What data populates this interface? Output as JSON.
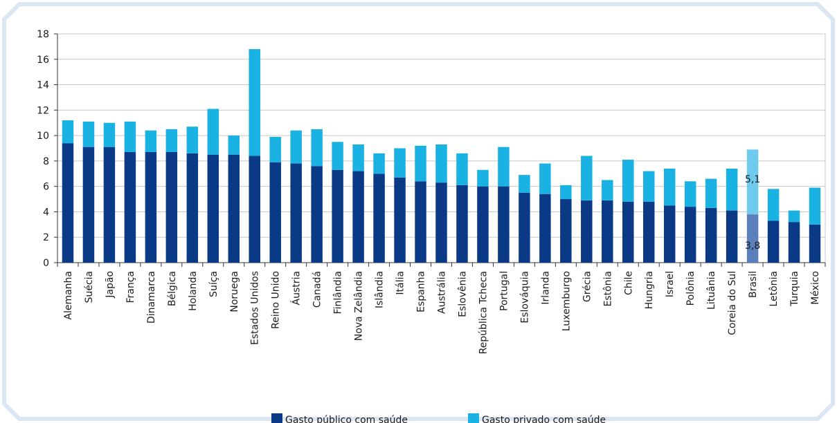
{
  "chart_data": {
    "type": "bar",
    "stacked": true,
    "title": "",
    "xlabel": "",
    "ylabel": "",
    "ylim": [
      0,
      18
    ],
    "yticks": [
      0,
      2,
      4,
      6,
      8,
      10,
      12,
      14,
      16,
      18
    ],
    "grid": true,
    "legend_position": "bottom",
    "categories": [
      "Alemanha",
      "Suécia",
      "Japão",
      "França",
      "Dinamarca",
      "Bélgica",
      "Holanda",
      "Suíça",
      "Noruega",
      "Estados Unidos",
      "Reino Unido",
      "Áustria",
      "Canadá",
      "Finlândia",
      "Nova Zelândia",
      "Islândia",
      "Itália",
      "Espanha",
      "Austrália",
      "Eslovênia",
      "República Tcheca",
      "Portugal",
      "Eslováquia",
      "Irlanda",
      "Luxemburgo",
      "Grécia",
      "Estônia",
      "Chile",
      "Hungria",
      "Israel",
      "Polônia",
      "Lituânia",
      "Coreia do Sul",
      "Brasil",
      "Letônia",
      "Turquia",
      "México"
    ],
    "series": [
      {
        "name": "Gasto público com saúde",
        "color": "#0a3a86",
        "values": [
          9.4,
          9.1,
          9.1,
          8.7,
          8.7,
          8.7,
          8.6,
          8.5,
          8.5,
          8.4,
          7.9,
          7.8,
          7.6,
          7.3,
          7.2,
          7.0,
          6.7,
          6.4,
          6.3,
          6.1,
          6.0,
          6.0,
          5.5,
          5.4,
          5.0,
          4.9,
          4.9,
          4.8,
          4.8,
          4.5,
          4.4,
          4.3,
          4.1,
          3.8,
          3.3,
          3.2,
          3.0
        ]
      },
      {
        "name": "Gasto privado com saúde",
        "color": "#1ab2e2",
        "values": [
          1.8,
          2.0,
          1.9,
          2.4,
          1.7,
          1.8,
          2.1,
          3.6,
          1.5,
          8.4,
          2.0,
          2.6,
          2.9,
          2.2,
          2.1,
          1.6,
          2.3,
          2.8,
          3.0,
          2.5,
          1.3,
          3.1,
          1.4,
          2.4,
          1.1,
          3.5,
          1.6,
          3.3,
          2.4,
          2.9,
          2.0,
          2.3,
          3.3,
          5.1,
          2.5,
          0.9,
          2.9
        ]
      }
    ],
    "highlight": {
      "category": "Brasil",
      "public_color": "#5b7fba",
      "private_color": "#6ecbee",
      "labels": [
        "5,1",
        "3,8"
      ]
    }
  },
  "legend": {
    "items": [
      {
        "label": "Gasto público com saúde",
        "color": "#0a3a86"
      },
      {
        "label": "Gasto privado com saúde",
        "color": "#1ab2e2"
      }
    ]
  },
  "colors": {
    "frame_border": "#dbe6f4",
    "grid": "#c8c8c8",
    "axis": "#333333"
  }
}
